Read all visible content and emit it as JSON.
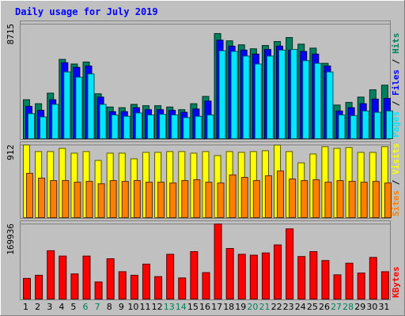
{
  "chart_data": {
    "type": "bar",
    "title": "Daily usage for July 2019",
    "categories": [
      "1",
      "2",
      "3",
      "4",
      "5",
      "6",
      "7",
      "8",
      "9",
      "10",
      "11",
      "12",
      "13",
      "14",
      "15",
      "16",
      "17",
      "18",
      "19",
      "20",
      "21",
      "22",
      "23",
      "24",
      "25",
      "26",
      "27",
      "28",
      "29",
      "30",
      "31"
    ],
    "weekend_days": [
      "6",
      "7",
      "13",
      "14",
      "20",
      "21",
      "27",
      "28"
    ],
    "panels": [
      {
        "id": "hits-files-pages",
        "ymax": 8715,
        "ymax_label": "8715",
        "axis_labels": [
          {
            "text": "Hits",
            "color": "#00805c"
          },
          {
            "text": " / ",
            "color": "#000000"
          },
          {
            "text": "Files",
            "color": "#0000ff"
          },
          {
            "text": " / ",
            "color": "#000000"
          },
          {
            "text": "Pages",
            "color": "#00e6ff"
          }
        ],
        "series": [
          {
            "name": "Hits",
            "color": "#00805c",
            "values": [
              3000,
              2700,
              3500,
              6050,
              5700,
              5850,
              3450,
              2450,
              2400,
              2650,
              2550,
              2550,
              2450,
              2250,
              2700,
              3250,
              8000,
              7450,
              7150,
              6850,
              7100,
              7400,
              7700,
              7200,
              6900,
              5750,
              2600,
              2800,
              3200,
              3750,
              4100
            ]
          },
          {
            "name": "Files",
            "color": "#0000ff",
            "values": [
              2500,
              2200,
              3000,
              5800,
              5450,
              5550,
              3200,
              2100,
              2100,
              2400,
              2250,
              2250,
              2200,
              2050,
              2300,
              2900,
              7500,
              7050,
              6750,
              6450,
              6800,
              7050,
              6750,
              6650,
              6450,
              5550,
              2150,
              2400,
              2700,
              3050,
              3100
            ]
          },
          {
            "name": "Pages",
            "color": "#00e6ff",
            "values": [
              1950,
              1700,
              2650,
              5100,
              4700,
              4950,
              2650,
              1850,
              1750,
              2000,
              1850,
              1900,
              1850,
              1650,
              1750,
              1850,
              6700,
              6650,
              6300,
              5700,
              6300,
              6750,
              6800,
              5950,
              5750,
              5100,
              1850,
              1800,
              2150,
              2050,
              2150
            ]
          }
        ]
      },
      {
        "id": "visits-sites",
        "ymax": 912,
        "ymax_label": "912",
        "axis_labels": [
          {
            "text": "Visits",
            "color": "#ffff00"
          },
          {
            "text": " / ",
            "color": "#000000"
          },
          {
            "text": "Sites",
            "color": "#ff8000"
          }
        ],
        "series": [
          {
            "name": "Visits",
            "color": "#ffff00",
            "values": [
              912,
              830,
              830,
              870,
              810,
              830,
              720,
              810,
              810,
              740,
              820,
              820,
              830,
              830,
              810,
              830,
              780,
              830,
              820,
              830,
              840,
              910,
              830,
              690,
              800,
              890,
              870,
              880,
              820,
              820,
              890
            ]
          },
          {
            "name": "Sites",
            "color": "#ff8000",
            "values": [
              560,
              500,
              470,
              470,
              450,
              460,
              430,
              470,
              460,
              470,
              450,
              450,
              440,
              470,
              480,
              450,
              440,
              540,
              510,
              470,
              530,
              590,
              490,
              470,
              480,
              450,
              470,
              460,
              450,
              460,
              440
            ]
          }
        ]
      },
      {
        "id": "kbytes",
        "ymax": 169936,
        "ymax_label": "169936",
        "axis_labels": [
          {
            "text": "KBytes",
            "color": "#ff0000"
          }
        ],
        "series": [
          {
            "name": "KBytes",
            "color": "#ff0000",
            "values": [
              48000,
              55000,
              110000,
              98000,
              58000,
              98000,
              40000,
              92000,
              63000,
              55000,
              80000,
              52000,
              102000,
              49000,
              108000,
              61000,
              169936,
              115000,
              102000,
              100000,
              105000,
              123000,
              159000,
              97000,
              108000,
              88000,
              56000,
              82000,
              60000,
              95000,
              63000
            ]
          }
        ]
      }
    ]
  }
}
